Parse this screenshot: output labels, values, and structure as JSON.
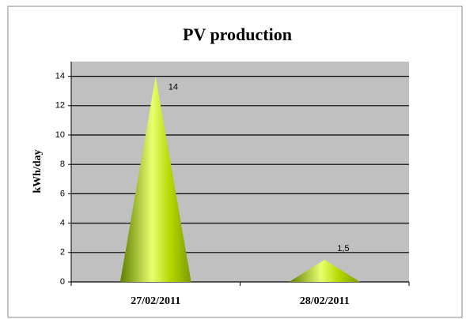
{
  "chart_data": {
    "type": "bar",
    "title": "PV production",
    "y_label": "kWh/day",
    "categories": [
      "27/02/2011",
      "28/02/2011"
    ],
    "values": [
      14,
      1.5
    ],
    "value_labels": [
      "14",
      "1,5"
    ],
    "color": "#b5d900",
    "ylim": [
      0,
      15
    ],
    "yticks": [
      0,
      2,
      4,
      6,
      8,
      10,
      12,
      14
    ],
    "grid": true
  }
}
